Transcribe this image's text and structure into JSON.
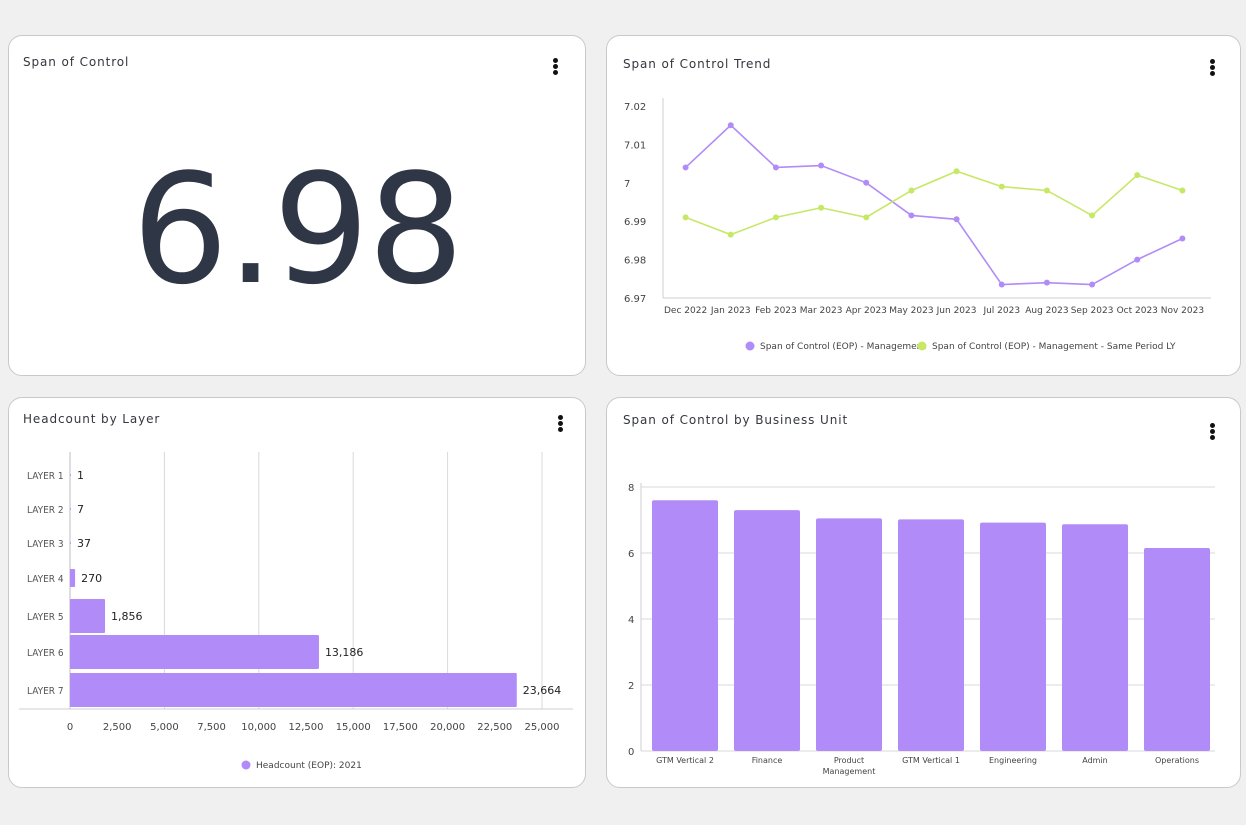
{
  "cards": {
    "kpi": {
      "title": "Span of Control",
      "value": "6.98"
    },
    "trend": {
      "title": "Span of Control Trend"
    },
    "headcount": {
      "title": "Headcount by Layer"
    },
    "bu": {
      "title": "Span of Control by Business Unit"
    }
  },
  "icons": {
    "menu": "kebab-menu-icon"
  },
  "colors": {
    "purple": "#b18bf7",
    "lime": "#c6e866",
    "bar_purple": "#b18bf7",
    "kpi_text": "#2f3747",
    "grid": "#d9d9dc"
  },
  "chart_data": [
    {
      "id": "trend",
      "type": "line",
      "title": "Span of Control Trend",
      "categories": [
        "Dec 2022",
        "Jan 2023",
        "Feb 2023",
        "Mar 2023",
        "Apr 2023",
        "May 2023",
        "Jun 2023",
        "Jul 2023",
        "Aug 2023",
        "Sep 2023",
        "Oct 2023",
        "Nov 2023"
      ],
      "series": [
        {
          "name": "Span of Control (EOP) - Management",
          "color": "#b18bf7",
          "values": [
            7.004,
            7.015,
            7.004,
            7.0045,
            7.0,
            6.9915,
            6.9905,
            6.9735,
            6.974,
            6.9735,
            6.98,
            6.9855
          ]
        },
        {
          "name": "Span of Control (EOP) - Management - Same Period LY",
          "color": "#c6e866",
          "values": [
            6.991,
            6.9865,
            6.991,
            6.9935,
            6.991,
            6.998,
            7.003,
            6.999,
            6.998,
            6.9915,
            7.002,
            6.998
          ]
        }
      ],
      "ylim": [
        6.97,
        7.02
      ],
      "yticks": [
        "6.97",
        "6.98",
        "6.99",
        "7",
        "7.01",
        "7.02"
      ],
      "grid": false,
      "legend": "bottom"
    },
    {
      "id": "headcount",
      "type": "bar",
      "orientation": "horizontal",
      "title": "Headcount by Layer",
      "categories": [
        "LAYER 1",
        "LAYER 2",
        "LAYER 3",
        "LAYER 4",
        "LAYER 5",
        "LAYER 6",
        "LAYER 7"
      ],
      "values": [
        1,
        7,
        37,
        270,
        1856,
        13186,
        23664
      ],
      "value_labels": [
        "1",
        "7",
        "37",
        "270",
        "1,856",
        "13,186",
        "23,664"
      ],
      "xlim": [
        0,
        25000
      ],
      "xticks": [
        "0",
        "2,500",
        "5,000",
        "7,500",
        "10,000",
        "12,500",
        "15,000",
        "17,500",
        "20,000",
        "22,500",
        "25,000"
      ],
      "series_name": "Headcount (EOP): 2021",
      "grid": true,
      "legend": "bottom"
    },
    {
      "id": "bu",
      "type": "bar",
      "orientation": "vertical",
      "title": "Span of Control by Business Unit",
      "categories": [
        "GTM Vertical 2",
        "Finance",
        "Product Management",
        "GTM Vertical 1",
        "Engineering",
        "Admin",
        "Operations"
      ],
      "values": [
        7.6,
        7.3,
        7.05,
        7.02,
        6.92,
        6.87,
        6.15
      ],
      "ylim": [
        0,
        8
      ],
      "yticks": [
        "0",
        "2",
        "4",
        "6",
        "8"
      ],
      "grid": true,
      "legend": "none"
    }
  ]
}
